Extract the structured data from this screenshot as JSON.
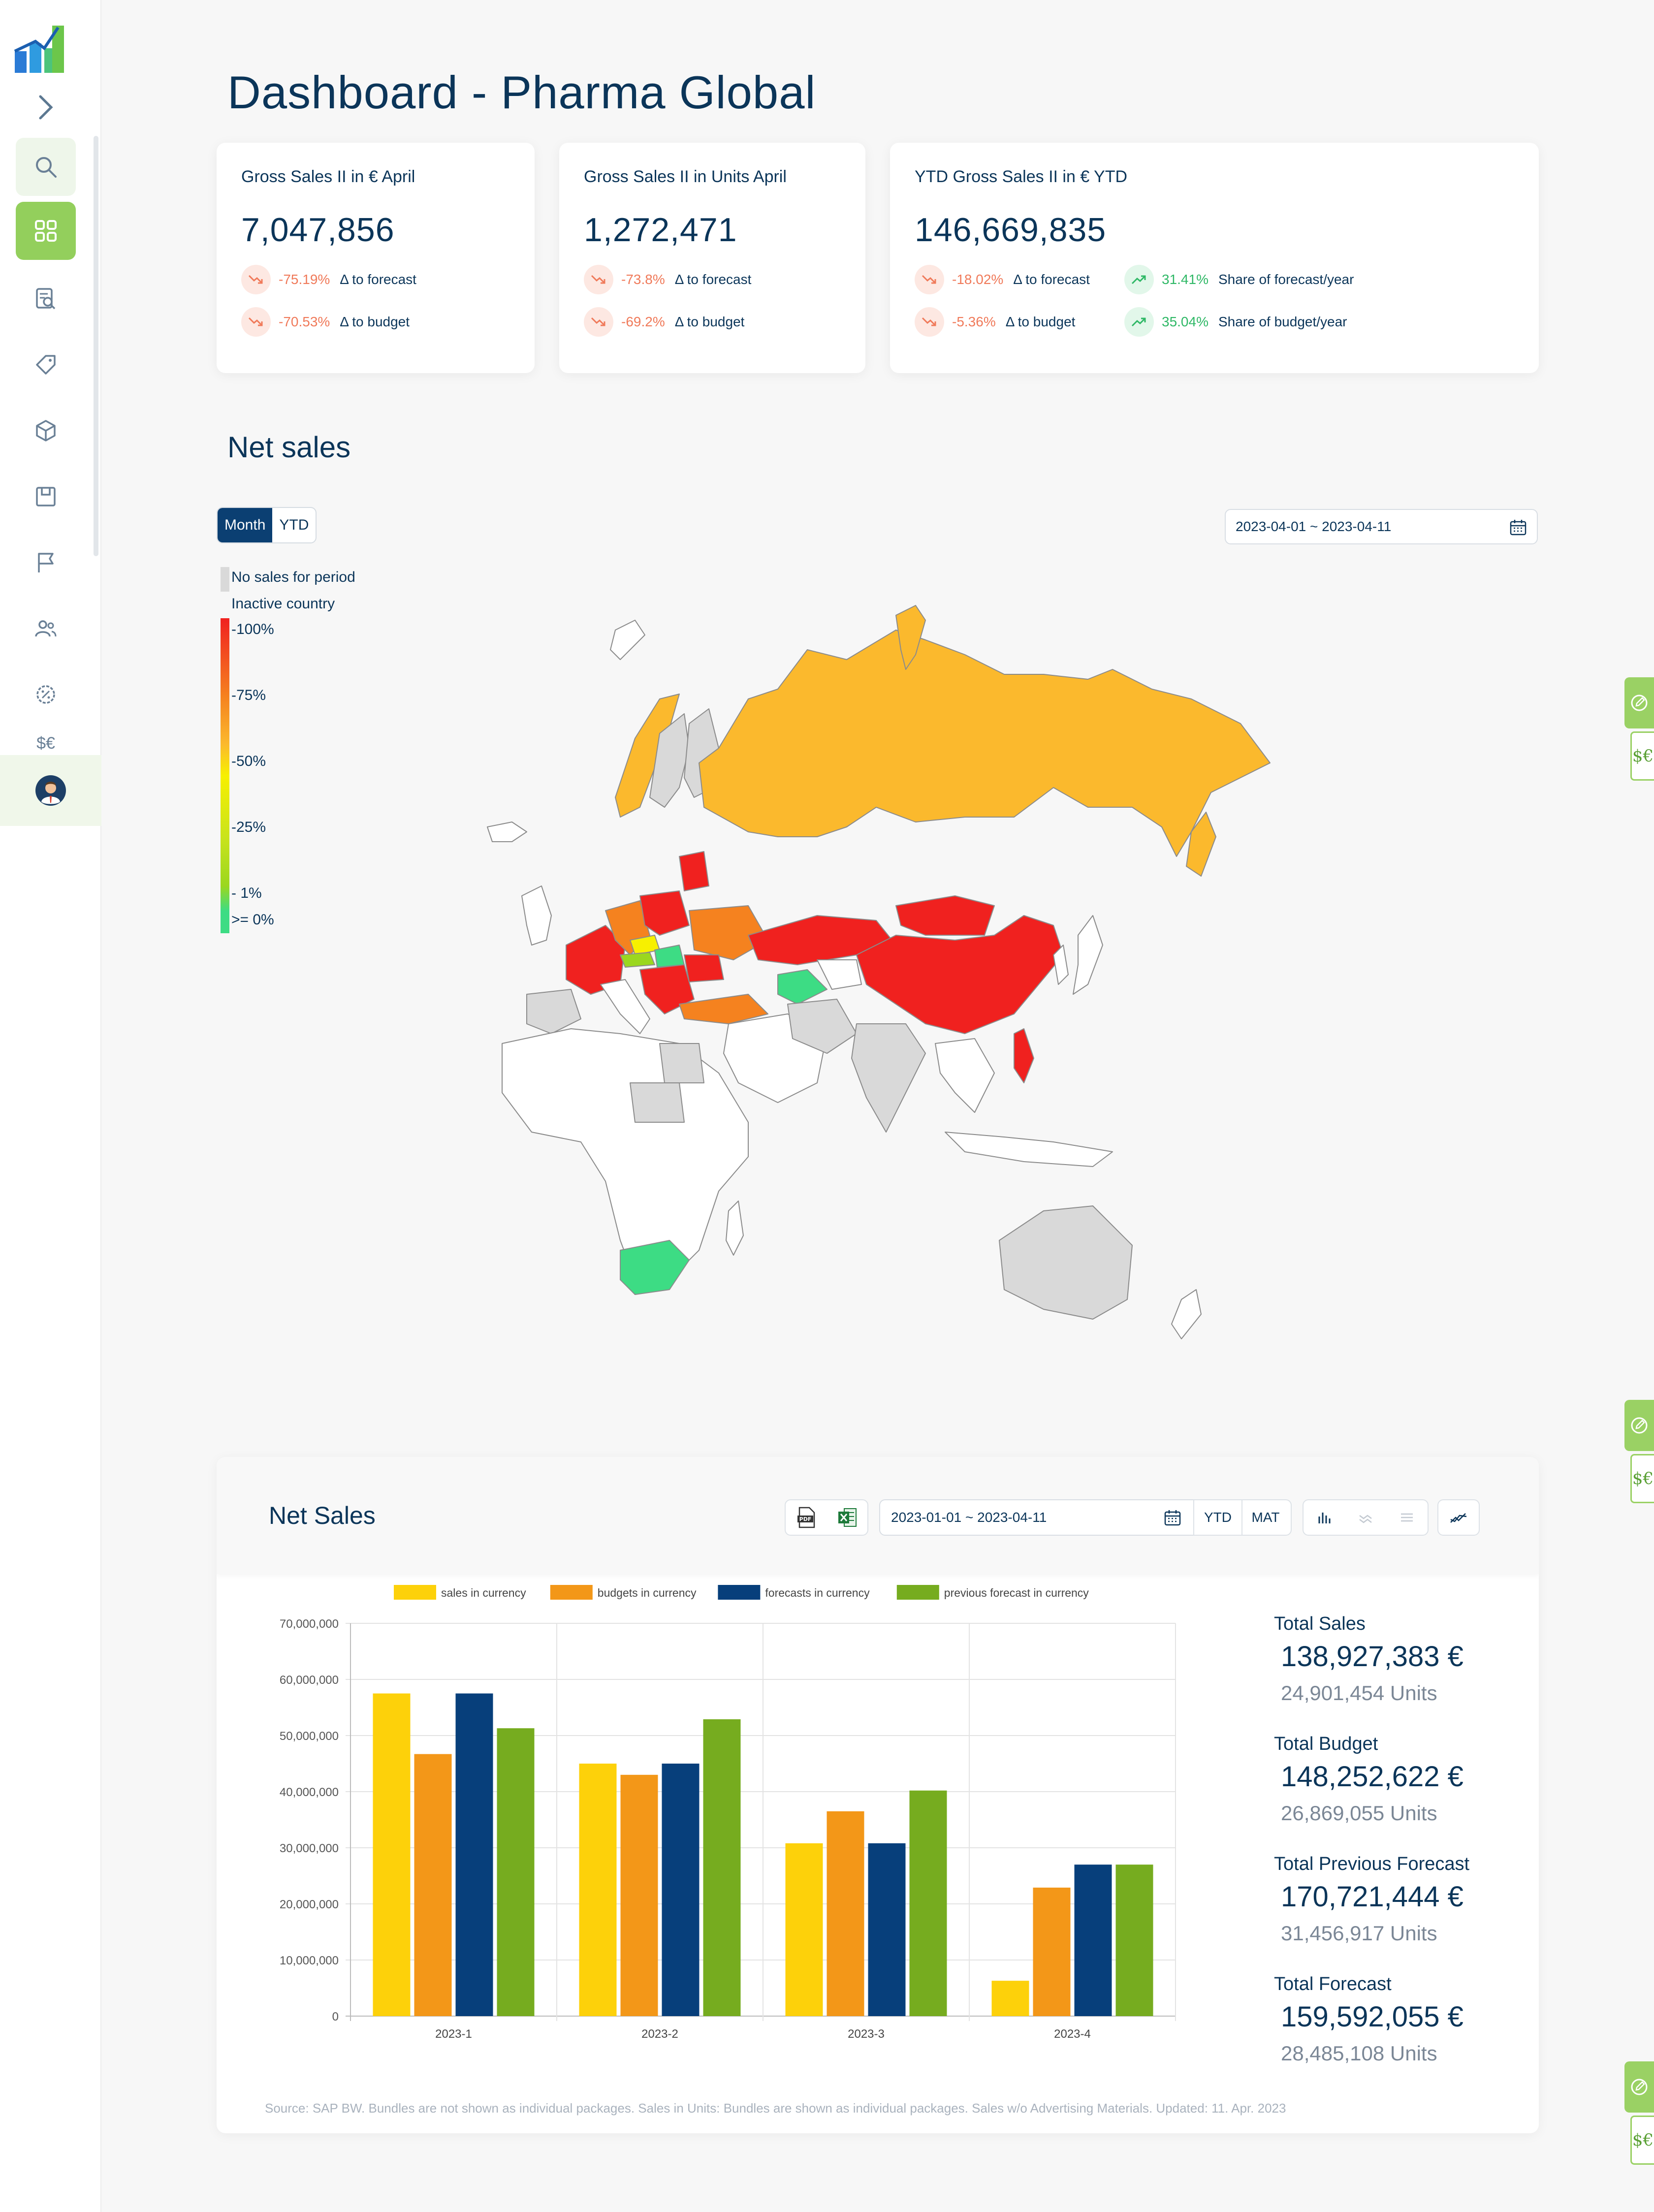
{
  "page_title": "Dashboard - Pharma Global",
  "sidebar": {
    "items": [
      {
        "icon": "search-icon"
      },
      {
        "icon": "dashboard-grid-icon",
        "active": true
      },
      {
        "icon": "report-search-icon"
      },
      {
        "icon": "tag-icon"
      },
      {
        "icon": "cube-icon"
      },
      {
        "icon": "save-box-icon"
      },
      {
        "icon": "flag-icon"
      },
      {
        "icon": "users-icon"
      },
      {
        "icon": "discount-badge-icon"
      },
      {
        "icon": "currency-icon"
      }
    ],
    "user": {
      "icon": "user-avatar-icon"
    }
  },
  "kpis": [
    {
      "title": "Gross Sales II in € April",
      "value": "7,047,856",
      "deltas": [
        {
          "pct": "-75.19%",
          "label": "Δ to forecast",
          "dir": "down"
        },
        {
          "pct": "-70.53%",
          "label": "Δ to budget",
          "dir": "down"
        }
      ]
    },
    {
      "title": "Gross Sales II in Units April",
      "value": "1,272,471",
      "deltas": [
        {
          "pct": "-73.8%",
          "label": "Δ to forecast",
          "dir": "down"
        },
        {
          "pct": "-69.2%",
          "label": "Δ to budget",
          "dir": "down"
        }
      ]
    },
    {
      "title": "YTD Gross Sales II in € YTD",
      "value": "146,669,835",
      "deltas": [
        {
          "pct": "-18.02%",
          "label": "Δ to forecast",
          "dir": "down"
        },
        {
          "pct": "-5.36%",
          "label": "Δ to budget",
          "dir": "down"
        },
        {
          "pct": "31.41%",
          "label": "Share of forecast/year",
          "dir": "up"
        },
        {
          "pct": "35.04%",
          "label": "Share of budget/year",
          "dir": "up"
        }
      ]
    }
  ],
  "net_sales_map": {
    "title": "Net sales",
    "toggle": {
      "month": "Month",
      "ytd": "YTD",
      "selected": "Month"
    },
    "date_range": "2023-04-01 ~ 2023-04-11",
    "legend": {
      "no_sales": "No sales for period",
      "inactive": "Inactive country",
      "scale": [
        "-100%",
        "-75%",
        "-50%",
        "-25%",
        "- 1%",
        ">= 0%"
      ],
      "colors": {
        "no_sales": "#d9d9d9",
        "red": "#f0211f",
        "orange": "#f5821f",
        "amber": "#fbb92d",
        "yellow": "#f7f000",
        "lime": "#9bd71f",
        "green": "#3ddc84"
      }
    }
  },
  "net_sales_chart": {
    "title": "Net Sales",
    "date_range": "2023-01-01 ~ 2023-04-11",
    "buttons": {
      "ytd": "YTD",
      "mat": "MAT"
    },
    "icons": {
      "pdf": "pdf-export-icon",
      "excel": "excel-export-icon",
      "calendar": "calendar-icon",
      "bar": "bar-chart-icon",
      "stacked": "stacked-lines-icon",
      "list": "list-icon",
      "trend": "trend-line-icon"
    },
    "totals": [
      {
        "label": "Total Sales",
        "eur": "138,927,383 €",
        "units": "24,901,454 Units"
      },
      {
        "label": "Total Budget",
        "eur": "148,252,622 €",
        "units": "26,869,055 Units"
      },
      {
        "label": "Total Previous Forecast",
        "eur": "170,721,444 €",
        "units": "31,456,917 Units"
      },
      {
        "label": "Total Forecast",
        "eur": "159,592,055 €",
        "units": "28,485,108 Units"
      }
    ],
    "footnote": "Source: SAP BW. Bundles are not shown as individual packages. Sales in Units: Bundles are shown as individual packages. Sales w/o Advertising Materials. Updated: 11. Apr. 2023"
  },
  "chart_data": {
    "type": "bar",
    "categories": [
      "2023-1",
      "2023-2",
      "2023-3",
      "2023-4"
    ],
    "series": [
      {
        "name": "sales in currency",
        "color": "#fdd10a",
        "values": [
          57500000,
          45000000,
          30800000,
          6300000
        ]
      },
      {
        "name": "budgets in currency",
        "color": "#f39718",
        "values": [
          46700000,
          43000000,
          36500000,
          22900000
        ]
      },
      {
        "name": "forecasts in currency",
        "color": "#073f7b",
        "values": [
          57500000,
          45000000,
          30800000,
          27000000
        ]
      },
      {
        "name": "previous forecast in currency",
        "color": "#76ac1f",
        "values": [
          51300000,
          52900000,
          40200000,
          27000000
        ]
      }
    ],
    "ylim": [
      0,
      70000000
    ],
    "yticks": [
      "0",
      "10,000,000",
      "20,000,000",
      "30,000,000",
      "40,000,000",
      "50,000,000",
      "60,000,000",
      "70,000,000"
    ],
    "grid": true,
    "legend": "top"
  }
}
